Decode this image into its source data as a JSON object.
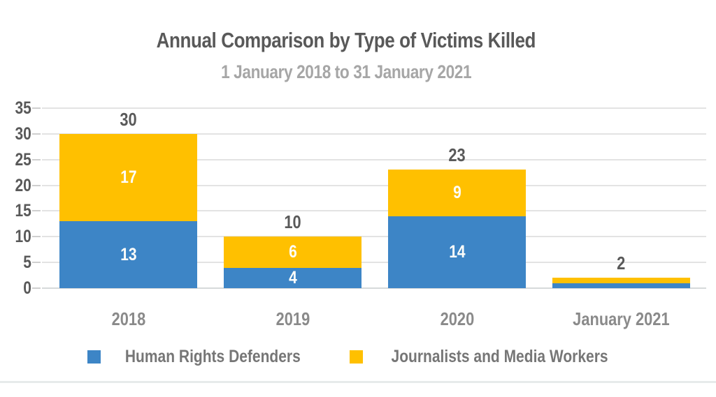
{
  "header": {
    "title": "Annual Comparison by Type of Victims Killed",
    "subtitle": "1 January 2018 to 31 January 2021"
  },
  "chart_data": {
    "type": "bar",
    "variant": "stacked",
    "title": "Annual Comparison by Type of Victims Killed",
    "subtitle": "1 January 2018 to 31 January 2021",
    "categories": [
      "2018",
      "2019",
      "2020",
      "January 2021"
    ],
    "series": [
      {
        "name": "Human Rights Defenders",
        "color": "#3d85c6",
        "values": [
          13,
          4,
          14,
          1
        ]
      },
      {
        "name": "Journalists and Media Workers",
        "color": "#ffc000",
        "values": [
          17,
          6,
          9,
          1
        ]
      }
    ],
    "totals": [
      30,
      10,
      23,
      2
    ],
    "segment_labels": [
      [
        "13",
        "4",
        "14",
        ""
      ],
      [
        "17",
        "6",
        "9",
        ""
      ]
    ],
    "y_ticks": [
      0,
      5,
      10,
      15,
      20,
      25,
      30,
      35
    ],
    "ylim": [
      0,
      35
    ],
    "xlabel": "",
    "ylabel": "",
    "grid": true,
    "legend_position": "bottom"
  },
  "colors": {
    "blue_series": "#3d85c6",
    "yellow_series": "#ffc000",
    "title_text": "#595959",
    "subtitle_text": "#a6a6a6",
    "axis_text": "#595959",
    "category_text": "#8a8a8a",
    "legend_text": "#767676",
    "gridline": "#e3e3e3"
  }
}
